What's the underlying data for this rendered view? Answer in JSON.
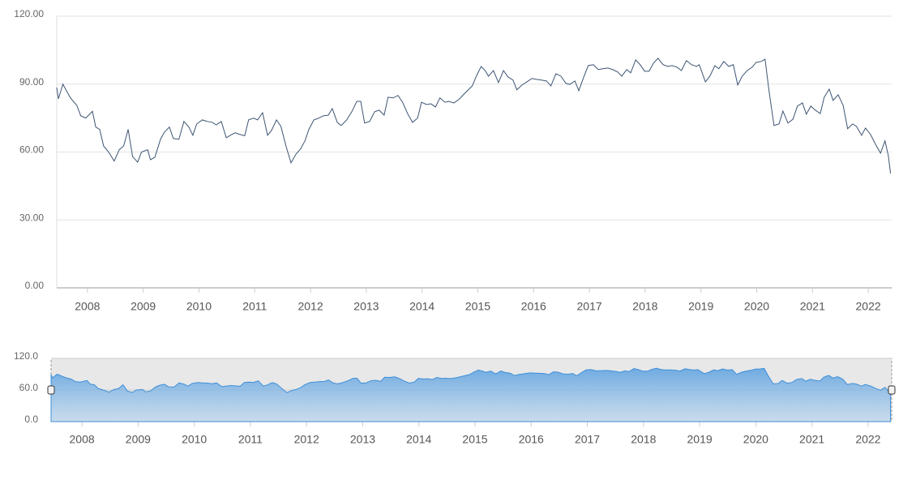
{
  "chart_data": {
    "type": "line",
    "color": "#3e5573",
    "grid": true,
    "x": [
      2007.45,
      2007.48,
      2007.56,
      2007.67,
      2007.71,
      2007.81,
      2007.88,
      2007.97,
      2008.09,
      2008.15,
      2008.22,
      2008.29,
      2008.38,
      2008.48,
      2008.57,
      2008.65,
      2008.73,
      2008.81,
      2008.9,
      2008.97,
      2009.08,
      2009.13,
      2009.21,
      2009.31,
      2009.38,
      2009.47,
      2009.54,
      2009.64,
      2009.73,
      2009.82,
      2009.89,
      2009.96,
      2010.06,
      2010.15,
      2010.24,
      2010.31,
      2010.4,
      2010.49,
      2010.57,
      2010.65,
      2010.73,
      2010.82,
      2010.89,
      2010.98,
      2011.05,
      2011.14,
      2011.23,
      2011.3,
      2011.39,
      2011.47,
      2011.56,
      2011.65,
      2011.74,
      2011.82,
      2011.9,
      2011.97,
      2012.06,
      2012.14,
      2012.23,
      2012.32,
      2012.39,
      2012.48,
      2012.55,
      2012.65,
      2012.74,
      2012.83,
      2012.9,
      2012.97,
      2013.06,
      2013.15,
      2013.23,
      2013.32,
      2013.39,
      2013.48,
      2013.57,
      2013.65,
      2013.74,
      2013.83,
      2013.92,
      2013.99,
      2014.08,
      2014.16,
      2014.24,
      2014.32,
      2014.41,
      2014.48,
      2014.57,
      2014.66,
      2014.74,
      2014.83,
      2014.9,
      2014.98,
      2015.06,
      2015.14,
      2015.19,
      2015.28,
      2015.37,
      2015.46,
      2015.54,
      2015.63,
      2015.7,
      2015.79,
      2015.88,
      2015.97,
      2016.05,
      2016.14,
      2016.23,
      2016.31,
      2016.4,
      2016.49,
      2016.58,
      2016.65,
      2016.74,
      2016.81,
      2016.9,
      2016.98,
      2017.07,
      2017.16,
      2017.24,
      2017.33,
      2017.42,
      2017.51,
      2017.58,
      2017.67,
      2017.74,
      2017.83,
      2017.91,
      2017.99,
      2018.07,
      2018.15,
      2018.23,
      2018.32,
      2018.41,
      2018.48,
      2018.57,
      2018.65,
      2018.74,
      2018.83,
      2018.92,
      2018.97,
      2019.08,
      2019.16,
      2019.25,
      2019.32,
      2019.41,
      2019.5,
      2019.58,
      2019.66,
      2019.74,
      2019.83,
      2019.92,
      2019.99,
      2020.08,
      2020.15,
      2020.22,
      2020.31,
      2020.4,
      2020.47,
      2020.56,
      2020.65,
      2020.73,
      2020.82,
      2020.89,
      2020.97,
      2021.05,
      2021.14,
      2021.21,
      2021.3,
      2021.37,
      2021.46,
      2021.55,
      2021.63,
      2021.72,
      2021.79,
      2021.88,
      2021.95,
      2022.04,
      2022.13,
      2022.22,
      2022.3,
      2022.36,
      2022.4
    ],
    "values": [
      88.5,
      83.5,
      90,
      85,
      83.5,
      80.6,
      76,
      75,
      78,
      71,
      70,
      62.7,
      60,
      56,
      61,
      62.7,
      70,
      58,
      55.5,
      60,
      61,
      56.6,
      57.7,
      65.6,
      68.8,
      71,
      66,
      65.6,
      73.5,
      71,
      67.4,
      72.4,
      74.2,
      73.5,
      73.1,
      72,
      73.5,
      66.3,
      67.5,
      68.5,
      67.8,
      67.2,
      74.2,
      75,
      74.2,
      77.4,
      67.4,
      69.5,
      74.2,
      71.3,
      62.7,
      55.2,
      59.1,
      61.3,
      64.9,
      70,
      74.2,
      74.9,
      76,
      76.3,
      79.2,
      73.1,
      71.7,
      74.2,
      77.8,
      82.4,
      82.4,
      72.8,
      73.5,
      77.8,
      78.5,
      76.3,
      84.2,
      83.9,
      85,
      82,
      77,
      73.1,
      75,
      82,
      81,
      81.3,
      79.9,
      83.9,
      82,
      82.4,
      81.7,
      83.2,
      85.3,
      87.5,
      89.2,
      93.9,
      97.8,
      95.7,
      93.5,
      96,
      90.7,
      96,
      93.2,
      91.8,
      87.5,
      89.6,
      91,
      92.5,
      92.1,
      91.8,
      91.4,
      89.2,
      94.6,
      93.5,
      90.3,
      89.9,
      91.4,
      87.1,
      93.2,
      98.2,
      98.6,
      96.4,
      96.8,
      97.1,
      96.4,
      95.3,
      93.5,
      96.4,
      95,
      100.7,
      98.6,
      95.7,
      95.7,
      99.3,
      101.4,
      98.6,
      97.8,
      98.2,
      97.5,
      96,
      100.4,
      98.6,
      97.8,
      98.6,
      91,
      93.5,
      98.2,
      96.8,
      100,
      97.8,
      98.6,
      89.6,
      93.5,
      96,
      97.5,
      99.6,
      100,
      101,
      87.1,
      71.7,
      72.4,
      78.1,
      72.8,
      74.5,
      80.3,
      81.7,
      76.7,
      80.3,
      78.5,
      77,
      84.2,
      87.8,
      82.8,
      85.3,
      80.6,
      70.3,
      72.4,
      71.3,
      67.4,
      70.6,
      67.8,
      63.4,
      59.5,
      64.9,
      58.4,
      50.5
    ],
    "xlim": [
      2007.45,
      2022.42
    ],
    "xticks": [
      2008,
      2009,
      2010,
      2011,
      2012,
      2013,
      2014,
      2015,
      2016,
      2017,
      2018,
      2019,
      2020,
      2021,
      2022
    ],
    "ylim": [
      0,
      120
    ],
    "yticks": [
      {
        "value": 0,
        "label": "0.00"
      },
      {
        "value": 30,
        "label": "30.00"
      },
      {
        "value": 60,
        "label": "60.00"
      },
      {
        "value": 90,
        "label": "90.00"
      },
      {
        "value": 120,
        "label": "120.00"
      }
    ],
    "navigator": {
      "color": "#3f8fd8",
      "ylim": [
        0,
        120
      ],
      "yticks": [
        {
          "value": 0,
          "label": "0.0"
        },
        {
          "value": 60,
          "label": "60.0"
        },
        {
          "value": 120,
          "label": "120.0"
        }
      ]
    }
  }
}
